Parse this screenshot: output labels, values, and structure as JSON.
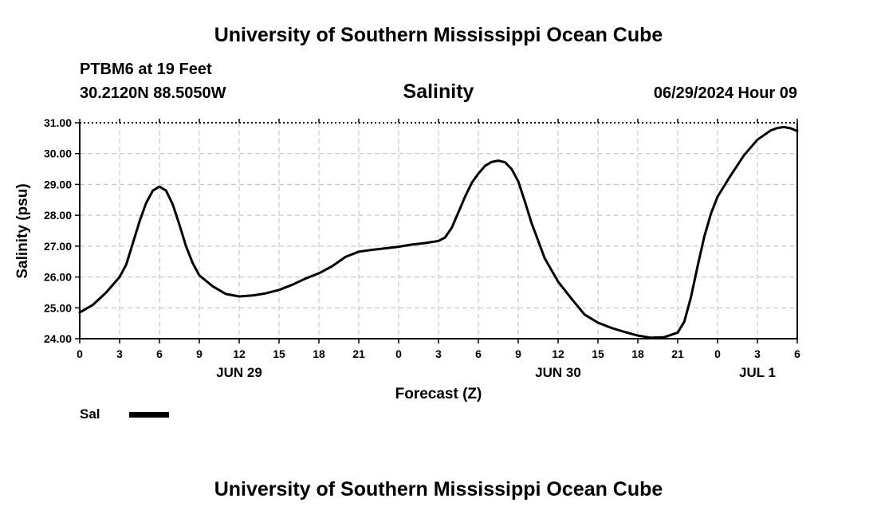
{
  "header": {
    "title": "University of Southern Mississippi Ocean Cube",
    "station_name": "PTBM6 at 19 Feet",
    "station_coords": "30.2120N  88.5050W",
    "timestamp": "06/29/2024 Hour 09"
  },
  "footer": {
    "title": "University of Southern Mississippi Ocean Cube"
  },
  "legend": {
    "label": "Sal",
    "color": "#000000"
  },
  "chart_data": {
    "type": "line",
    "title": "Salinity",
    "xlabel": "Forecast (Z)",
    "ylabel": "Salinity (psu)",
    "ylim": [
      24.0,
      31.0
    ],
    "xlim_hours": [
      0,
      54
    ],
    "grid": true,
    "legend_position": "bottom-left",
    "y_ticks": [
      "24.00",
      "25.00",
      "26.00",
      "27.00",
      "28.00",
      "29.00",
      "30.00",
      "31.00"
    ],
    "x_ticks": [
      "0",
      "3",
      "6",
      "9",
      "12",
      "15",
      "18",
      "21",
      "0",
      "3",
      "6",
      "9",
      "12",
      "15",
      "18",
      "21",
      "0",
      "3",
      "6"
    ],
    "date_labels": [
      {
        "label": "JUN 29",
        "hour": 12
      },
      {
        "label": "JUN 30",
        "hour": 36
      },
      {
        "label": "JUL 1",
        "hour": 51
      }
    ],
    "series": [
      {
        "name": "Sal",
        "x": [
          0,
          1,
          2,
          3,
          3.5,
          4,
          4.5,
          5,
          5.5,
          6,
          6.5,
          7,
          7.5,
          8,
          8.5,
          9,
          10,
          11,
          12,
          13,
          14,
          15,
          16,
          17,
          18,
          19,
          20,
          21,
          22,
          23,
          24,
          25,
          26,
          27,
          27.5,
          28,
          28.5,
          29,
          29.5,
          30,
          30.5,
          31,
          31.5,
          32,
          32.5,
          33,
          33.5,
          34,
          35,
          36,
          37,
          38,
          39,
          40,
          41,
          42,
          43,
          44,
          45,
          45.5,
          46,
          46.5,
          47,
          47.5,
          48,
          48.5,
          49,
          50,
          51,
          52,
          52.5,
          53,
          53.5,
          54
        ],
        "y": [
          24.85,
          25.1,
          25.5,
          26.0,
          26.4,
          27.1,
          27.8,
          28.4,
          28.8,
          28.93,
          28.8,
          28.35,
          27.7,
          27.0,
          26.45,
          26.05,
          25.7,
          25.45,
          25.37,
          25.4,
          25.47,
          25.58,
          25.75,
          25.95,
          26.12,
          26.35,
          26.65,
          26.82,
          26.88,
          26.93,
          26.98,
          27.05,
          27.1,
          27.17,
          27.28,
          27.6,
          28.1,
          28.6,
          29.05,
          29.35,
          29.6,
          29.73,
          29.77,
          29.72,
          29.5,
          29.1,
          28.45,
          27.75,
          26.6,
          25.85,
          25.3,
          24.78,
          24.52,
          24.35,
          24.22,
          24.1,
          24.03,
          24.05,
          24.2,
          24.55,
          25.35,
          26.35,
          27.3,
          28.05,
          28.6,
          28.95,
          29.3,
          29.95,
          30.45,
          30.75,
          30.83,
          30.86,
          30.82,
          30.73
        ]
      }
    ]
  }
}
